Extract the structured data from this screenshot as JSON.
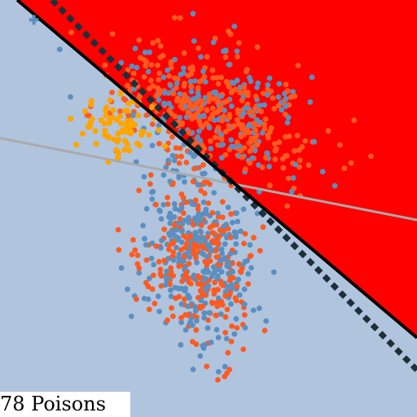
{
  "caption": "78 Poisons",
  "chart_data": {
    "type": "scatter",
    "title": "",
    "xlabel": "",
    "ylabel": "",
    "xlim": [
      -4,
      4
    ],
    "ylim": [
      -4,
      4
    ],
    "grid": false,
    "legend": "none",
    "colors": {
      "region_negative": "#b0c4de",
      "region_positive": "#ff0000",
      "class_blue": "#5b8fbf",
      "class_orange": "#ff5a1f",
      "poison": "#ffa500",
      "clean_boundary": "#000000",
      "poisoned_boundary": "#1f2f3a",
      "auxiliary_line": "#aaaaaa"
    },
    "boundaries": {
      "solid": [
        [
          -3.67,
          4.0
        ],
        [
          4.0,
          -2.48
        ]
      ],
      "dashed": [
        [
          -3.0,
          4.0
        ],
        [
          4.0,
          -3.1
        ]
      ],
      "gray": [
        [
          -4.0,
          1.35
        ],
        [
          4.0,
          -0.22
        ]
      ]
    },
    "clusters": [
      {
        "role": "upper",
        "center": [
          0.1,
          1.9
        ],
        "spread": [
          0.95,
          0.62
        ],
        "corr": -0.35,
        "count": 520,
        "blue_fraction": 0.35
      },
      {
        "role": "lower",
        "center": [
          -0.2,
          -0.9
        ],
        "spread": [
          0.55,
          0.85
        ],
        "corr": -0.15,
        "count": 560,
        "blue_fraction": 0.55
      }
    ],
    "poisons": {
      "count": 78,
      "center": [
        -1.75,
        1.55
      ],
      "spread": [
        0.4,
        0.28
      ]
    },
    "marker": {
      "x": -3.35,
      "y": 3.62
    }
  }
}
